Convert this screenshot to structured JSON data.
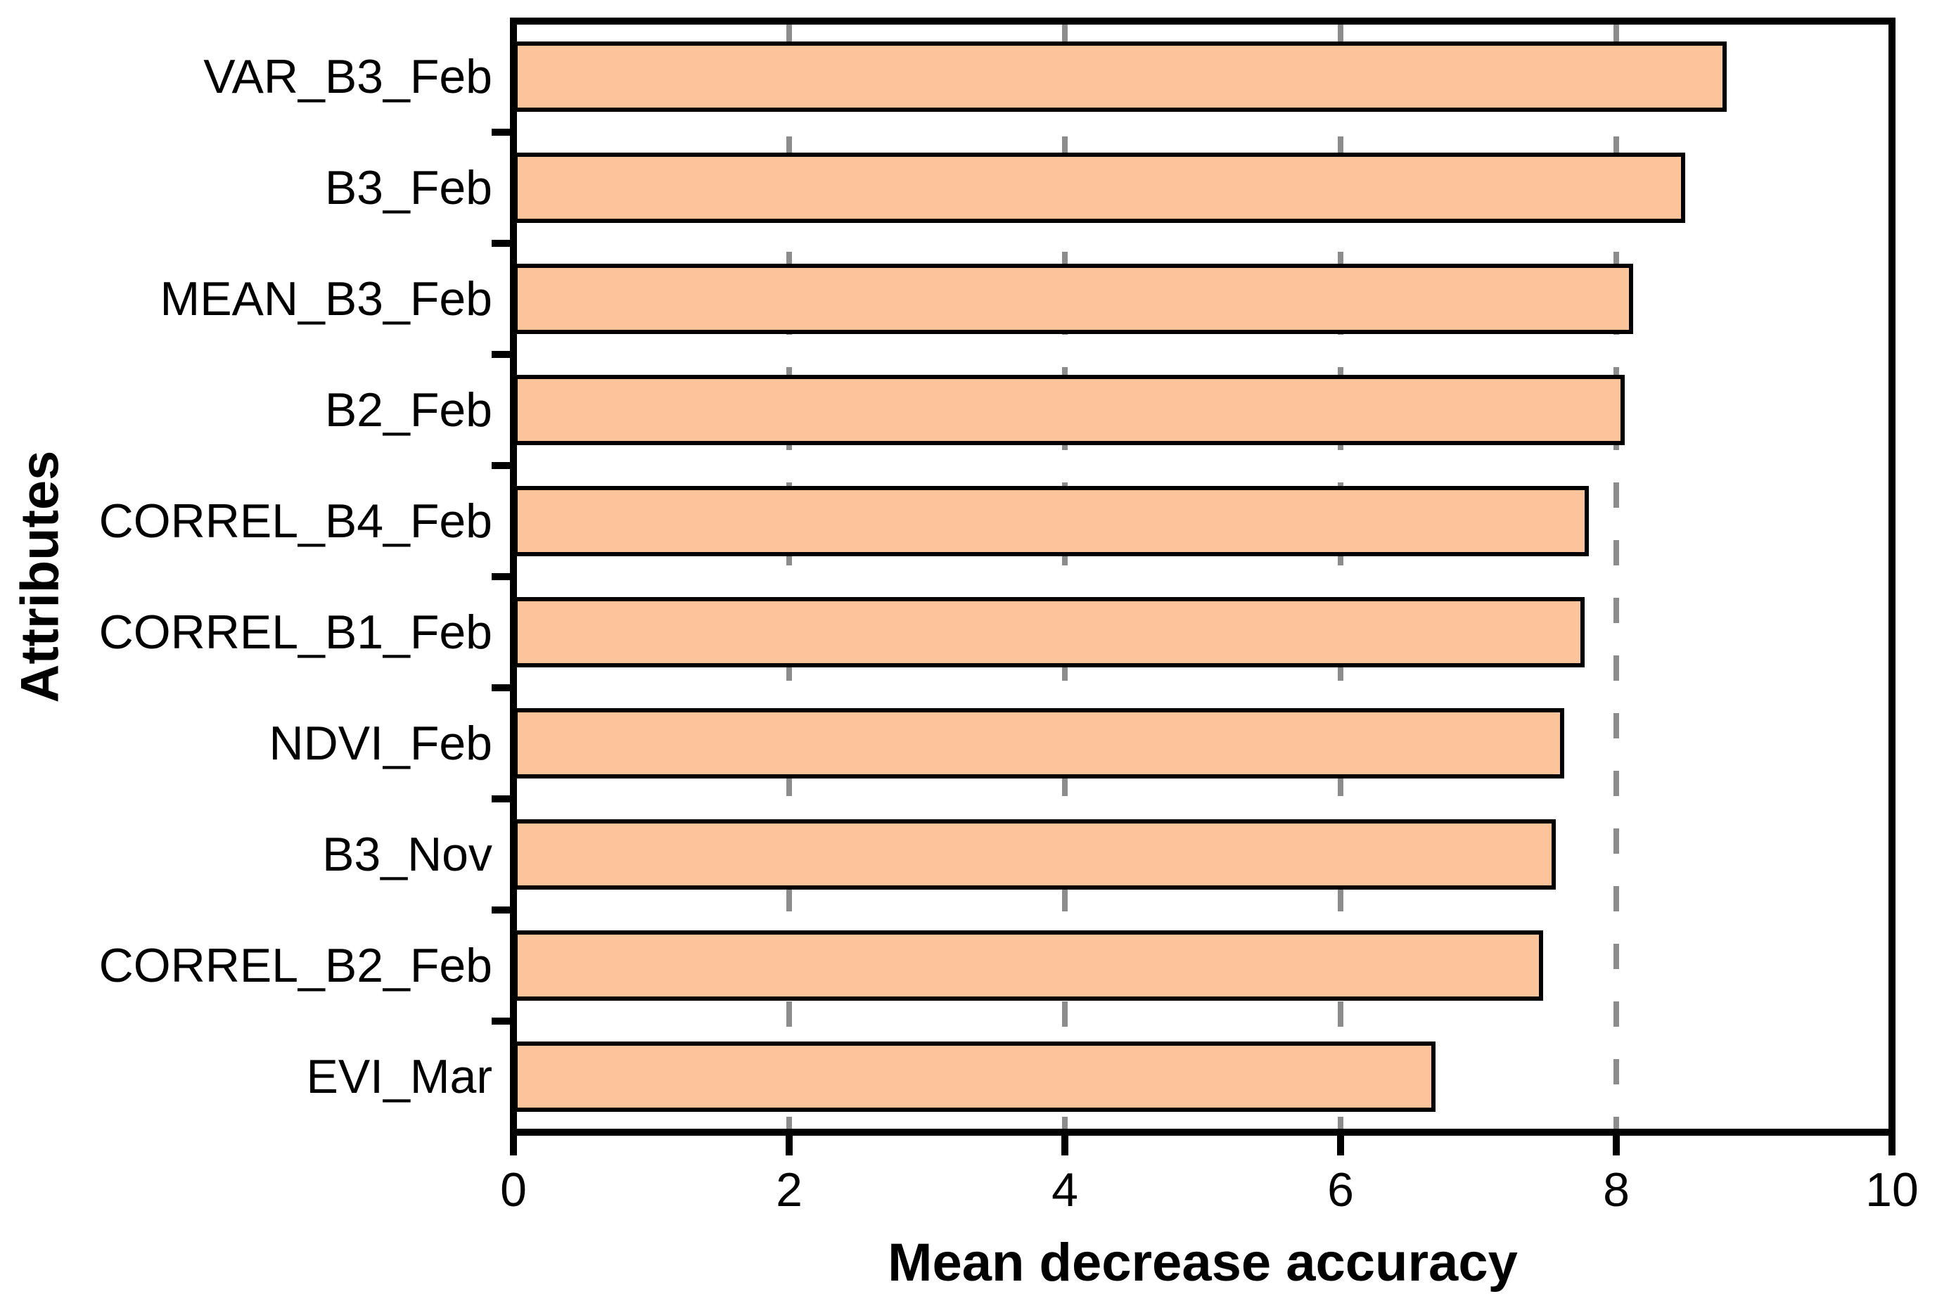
{
  "chart_data": {
    "type": "bar",
    "orientation": "horizontal",
    "title": "",
    "xlabel": "Mean decrease accuracy",
    "ylabel": "Attributes",
    "categories": [
      "VAR_B3_Feb",
      "B3_Feb",
      "MEAN_B3_Feb",
      "B2_Feb",
      "CORREL_B4_Feb",
      "CORREL_B1_Feb",
      "NDVI_Feb",
      "B3_Nov",
      "CORREL_B2_Feb",
      "EVI_Mar"
    ],
    "values": [
      8.8,
      8.5,
      8.12,
      8.06,
      7.8,
      7.77,
      7.62,
      7.56,
      7.47,
      6.69
    ],
    "xlim": [
      0,
      10
    ],
    "xticks": [
      0,
      2,
      4,
      6,
      8,
      10
    ],
    "gridlines": [
      2,
      4,
      6,
      8
    ],
    "grid_style": "dashed",
    "legend": "none",
    "colors": {
      "bar_fill": "#FDC49B",
      "bar_border": "#000000",
      "axis": "#000000",
      "gridline": "#8C8C8C",
      "text": "#000000"
    }
  }
}
